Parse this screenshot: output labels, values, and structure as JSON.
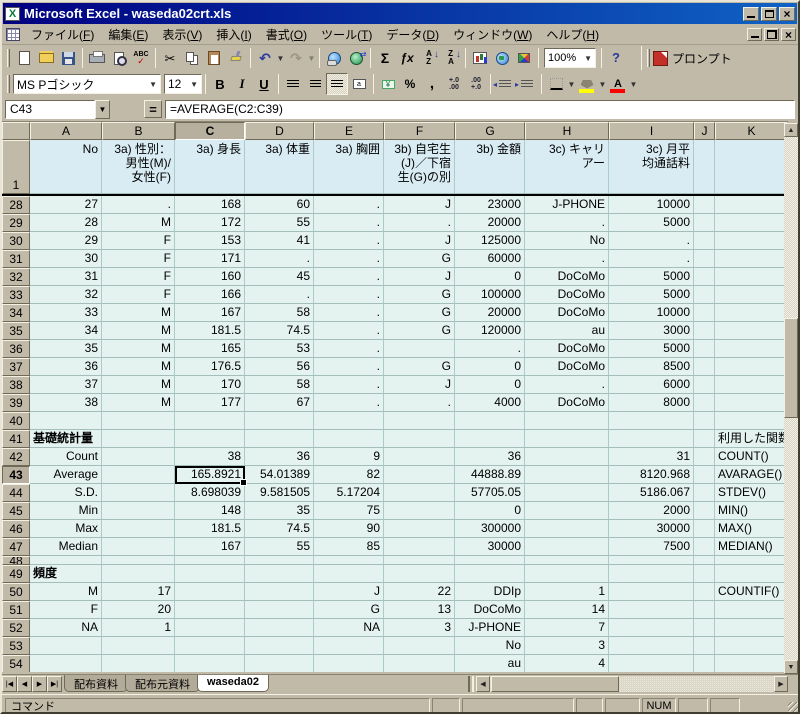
{
  "window": {
    "title": "Microsoft Excel - waseda02crt.xls"
  },
  "menu": {
    "items": [
      {
        "name": "file",
        "label": "ファイル(F)"
      },
      {
        "name": "edit",
        "label": "編集(E)"
      },
      {
        "name": "view",
        "label": "表示(V)"
      },
      {
        "name": "insert",
        "label": "挿入(I)"
      },
      {
        "name": "format",
        "label": "書式(O)"
      },
      {
        "name": "tools",
        "label": "ツール(T)"
      },
      {
        "name": "data",
        "label": "データ(D)"
      },
      {
        "name": "window",
        "label": "ウィンドウ(W)"
      },
      {
        "name": "help",
        "label": "ヘルプ(H)"
      }
    ]
  },
  "toolbar": {
    "zoom_value": "100%",
    "prompt_label": "プロンプト",
    "std_groups": [
      [
        {
          "name": "new"
        },
        {
          "name": "open"
        },
        {
          "name": "save"
        }
      ],
      [
        {
          "name": "print"
        },
        {
          "name": "preview"
        },
        {
          "name": "spelling"
        }
      ],
      [
        {
          "name": "cut"
        },
        {
          "name": "copy"
        },
        {
          "name": "paste"
        },
        {
          "name": "fmtpaint"
        }
      ],
      [
        {
          "name": "undo",
          "dd": true
        },
        {
          "name": "redo",
          "dd": true,
          "disabled": true
        }
      ],
      [
        {
          "name": "hyperlink"
        },
        {
          "name": "web"
        }
      ],
      [
        {
          "name": "autosum"
        },
        {
          "name": "function"
        },
        {
          "name": "sortaz"
        },
        {
          "name": "sortza"
        }
      ],
      [
        {
          "name": "chart"
        },
        {
          "name": "map"
        },
        {
          "name": "draw"
        }
      ]
    ]
  },
  "format": {
    "font_name": "MS Pゴシック",
    "font_size": "12",
    "bold_label": "B",
    "italic_label": "I",
    "underline_label": "U",
    "percent_label": "%",
    "comma_label": ",",
    "inc_decimal_label": "+.0\n.00",
    "dec_decimal_label": ".00\n+.0",
    "fill_color": "#ffff00",
    "font_color": "#ff0000"
  },
  "formula_bar": {
    "name_box": "C43",
    "equals": "=",
    "formula": "=AVERAGE(C2:C39)"
  },
  "grid": {
    "columns": [
      "A",
      "B",
      "C",
      "D",
      "E",
      "F",
      "G",
      "H",
      "I",
      "J",
      "K"
    ],
    "selected_column": "C",
    "selected_row": "43",
    "selected_cell": "C43",
    "header_row": {
      "n": "1",
      "cells": [
        "No",
        "3a) 性別：\n男性(M)/\n女性(F)",
        "3a) 身長",
        "3a) 体重",
        "3a) 胸囲",
        "3b) 自宅生\n(J)／下宿\n生(G)の別",
        "3b) 金額",
        "3c) キャリ\nアー",
        "3c) 月平\n均通話料",
        "",
        ""
      ]
    },
    "rows": [
      {
        "n": "28",
        "c": [
          "27",
          ".",
          "168",
          "60",
          ".",
          "J",
          "23000",
          "J-PHONE",
          "10000",
          "",
          ""
        ]
      },
      {
        "n": "29",
        "c": [
          "28",
          "M",
          "172",
          "55",
          ".",
          ".",
          "20000",
          ".",
          "5000",
          "",
          ""
        ]
      },
      {
        "n": "30",
        "c": [
          "29",
          "F",
          "153",
          "41",
          ".",
          "J",
          "125000",
          "No",
          ".",
          "",
          ""
        ]
      },
      {
        "n": "31",
        "c": [
          "30",
          "F",
          "171",
          ".",
          ".",
          "G",
          "60000",
          ".",
          ".",
          "",
          ""
        ]
      },
      {
        "n": "32",
        "c": [
          "31",
          "F",
          "160",
          "45",
          ".",
          "J",
          "0",
          "DoCoMo",
          "5000",
          "",
          ""
        ]
      },
      {
        "n": "33",
        "c": [
          "32",
          "F",
          "166",
          ".",
          ".",
          "G",
          "100000",
          "DoCoMo",
          "5000",
          "",
          ""
        ]
      },
      {
        "n": "34",
        "c": [
          "33",
          "M",
          "167",
          "58",
          ".",
          "G",
          "20000",
          "DoCoMo",
          "10000",
          "",
          ""
        ]
      },
      {
        "n": "35",
        "c": [
          "34",
          "M",
          "181.5",
          "74.5",
          ".",
          "G",
          "120000",
          "au",
          "3000",
          "",
          ""
        ]
      },
      {
        "n": "36",
        "c": [
          "35",
          "M",
          "165",
          "53",
          ".",
          "",
          ".",
          "DoCoMo",
          "5000",
          "",
          ""
        ]
      },
      {
        "n": "37",
        "c": [
          "36",
          "M",
          "176.5",
          "56",
          ".",
          "G",
          "0",
          "DoCoMo",
          "8500",
          "",
          ""
        ]
      },
      {
        "n": "38",
        "c": [
          "37",
          "M",
          "170",
          "58",
          ".",
          "J",
          "0",
          ".",
          "6000",
          "",
          ""
        ]
      },
      {
        "n": "39",
        "c": [
          "38",
          "M",
          "177",
          "67",
          ".",
          ".",
          "4000",
          "DoCoMo",
          "8000",
          "",
          ""
        ]
      },
      {
        "n": "40",
        "c": [
          "",
          "",
          "",
          "",
          "",
          "",
          "",
          "",
          "",
          "",
          ""
        ]
      },
      {
        "n": "41",
        "c": [
          "基礎統計量",
          "",
          "",
          "",
          "",
          "",
          "",
          "",
          "",
          "",
          "利用した関数"
        ],
        "b": [
          0
        ]
      },
      {
        "n": "42",
        "c": [
          "Count",
          "",
          "38",
          "36",
          "9",
          "",
          "36",
          "",
          "31",
          "",
          "COUNT()"
        ]
      },
      {
        "n": "43",
        "c": [
          "Average",
          "",
          "165.8921",
          "54.01389",
          "82",
          "",
          "44888.89",
          "",
          "8120.968",
          "",
          "AVARAGE()"
        ]
      },
      {
        "n": "44",
        "c": [
          "S.D.",
          "",
          "8.698039",
          "9.581505",
          "5.17204",
          "",
          "57705.05",
          "",
          "5186.067",
          "",
          "STDEV()"
        ]
      },
      {
        "n": "45",
        "c": [
          "Min",
          "",
          "148",
          "35",
          "75",
          "",
          "0",
          "",
          "2000",
          "",
          "MIN()"
        ]
      },
      {
        "n": "46",
        "c": [
          "Max",
          "",
          "181.5",
          "74.5",
          "90",
          "",
          "300000",
          "",
          "30000",
          "",
          "MAX()"
        ]
      },
      {
        "n": "47",
        "c": [
          "Median",
          "",
          "167",
          "55",
          "85",
          "",
          "30000",
          "",
          "7500",
          "",
          "MEDIAN()"
        ]
      },
      {
        "n": "48",
        "c": [
          "",
          "",
          "",
          "",
          "",
          "",
          "",
          "",
          "",
          "",
          ""
        ],
        "h": 9
      },
      {
        "n": "49",
        "c": [
          "頻度",
          "",
          "",
          "",
          "",
          "",
          "",
          "",
          "",
          "",
          ""
        ],
        "b": [
          0
        ]
      },
      {
        "n": "50",
        "c": [
          "M",
          "17",
          "",
          "",
          "J",
          "22",
          "DDIp",
          "1",
          "",
          "",
          "COUNTIF()"
        ]
      },
      {
        "n": "51",
        "c": [
          "F",
          "20",
          "",
          "",
          "G",
          "13",
          "DoCoMo",
          "14",
          "",
          "",
          ""
        ]
      },
      {
        "n": "52",
        "c": [
          "NA",
          "1",
          "",
          "",
          "NA",
          "3",
          "J-PHONE",
          "7",
          "",
          "",
          ""
        ]
      },
      {
        "n": "53",
        "c": [
          "",
          "",
          "",
          "",
          "",
          "",
          "No",
          "3",
          "",
          "",
          ""
        ]
      },
      {
        "n": "54",
        "c": [
          "",
          "",
          "",
          "",
          "",
          "",
          "au",
          "4",
          "",
          "",
          ""
        ]
      }
    ]
  },
  "tabs": {
    "sheets": [
      "配布資料",
      "配布元資料",
      "waseda02"
    ],
    "active": "waseda02"
  },
  "status": {
    "mode": "コマンド",
    "num": "NUM"
  }
}
